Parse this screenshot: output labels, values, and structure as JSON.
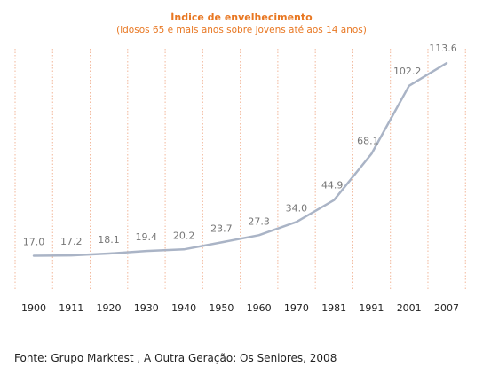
{
  "chart_data": {
    "type": "line",
    "title": "Índice de envelhecimento",
    "subtitle": "(idosos 65 e mais anos sobre jovens até aos 14 anos)",
    "categories": [
      "1900",
      "1911",
      "1920",
      "1930",
      "1940",
      "1950",
      "1960",
      "1970",
      "1981",
      "1991",
      "2001",
      "2007"
    ],
    "values": [
      17.0,
      17.2,
      18.1,
      19.4,
      20.2,
      23.7,
      27.3,
      34.0,
      44.9,
      68.1,
      102.2,
      113.6
    ],
    "value_labels": [
      "17.0",
      "17.2",
      "18.1",
      "19.4",
      "20.2",
      "23.7",
      "27.3",
      "34.0",
      "44.9",
      "68.1",
      "102.2",
      "113.6"
    ],
    "line_color": "#aab4c6",
    "gridline_color": "#f2b79a",
    "grid": "vertical dotted",
    "legend": "none"
  },
  "source": "Fonte: Grupo Marktest , A Outra Geração: Os Seniores, 2008"
}
